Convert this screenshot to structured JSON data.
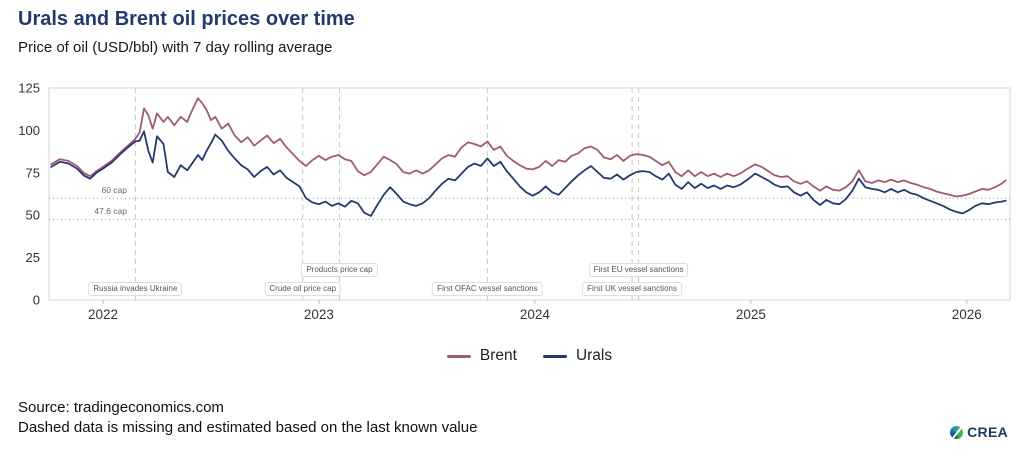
{
  "header": {
    "title": "Urals and Brent oil prices over time",
    "subtitle": "Price of oil (USD/bbl) with 7 day rolling average"
  },
  "footer": {
    "source": "Source: tradingeconomics.com",
    "note": "Dashed data is missing and estimated based on the last known value",
    "logo_text": "CREA"
  },
  "chart_data": {
    "type": "line",
    "title": "Urals and Brent oil prices over time",
    "xlabel": "",
    "ylabel": "Price of oil (USD/bbl) with 7 day rolling average",
    "xlim": [
      2021.75,
      2026.2
    ],
    "ylim": [
      0,
      125
    ],
    "y_ticks": [
      0,
      25,
      50,
      75,
      100,
      125
    ],
    "x_ticks": [
      2022,
      2023,
      2024,
      2025,
      2026
    ],
    "grid": false,
    "legend_position": "bottom-center",
    "colors": {
      "brent": "#a05a78",
      "urals": "#233a6e"
    },
    "x": [
      2021.76,
      2021.8,
      2021.84,
      2021.88,
      2021.91,
      2021.94,
      2021.97,
      2022.0,
      2022.04,
      2022.08,
      2022.12,
      2022.15,
      2022.17,
      2022.19,
      2022.21,
      2022.23,
      2022.25,
      2022.28,
      2022.3,
      2022.33,
      2022.36,
      2022.39,
      2022.41,
      2022.44,
      2022.46,
      2022.48,
      2022.5,
      2022.52,
      2022.55,
      2022.58,
      2022.61,
      2022.64,
      2022.67,
      2022.7,
      2022.73,
      2022.76,
      2022.79,
      2022.82,
      2022.85,
      2022.88,
      2022.91,
      2022.94,
      2022.97,
      2023.0,
      2023.03,
      2023.06,
      2023.09,
      2023.12,
      2023.15,
      2023.18,
      2023.21,
      2023.24,
      2023.27,
      2023.3,
      2023.33,
      2023.36,
      2023.39,
      2023.42,
      2023.45,
      2023.48,
      2023.51,
      2023.54,
      2023.57,
      2023.6,
      2023.63,
      2023.66,
      2023.69,
      2023.72,
      2023.75,
      2023.78,
      2023.81,
      2023.84,
      2023.87,
      2023.9,
      2023.93,
      2023.96,
      2023.99,
      2024.02,
      2024.05,
      2024.08,
      2024.11,
      2024.14,
      2024.17,
      2024.2,
      2024.23,
      2024.26,
      2024.29,
      2024.32,
      2024.35,
      2024.38,
      2024.41,
      2024.44,
      2024.47,
      2024.5,
      2024.53,
      2024.56,
      2024.59,
      2024.62,
      2024.65,
      2024.68,
      2024.71,
      2024.74,
      2024.77,
      2024.8,
      2024.83,
      2024.86,
      2024.89,
      2024.92,
      2024.95,
      2024.98,
      2025.02,
      2025.05,
      2025.08,
      2025.11,
      2025.14,
      2025.17,
      2025.2,
      2025.23,
      2025.26,
      2025.29,
      2025.32,
      2025.35,
      2025.38,
      2025.41,
      2025.44,
      2025.47,
      2025.5,
      2025.53,
      2025.56,
      2025.59,
      2025.62,
      2025.65,
      2025.68,
      2025.71,
      2025.74,
      2025.77,
      2025.8,
      2025.83,
      2025.86,
      2025.89,
      2025.92,
      2025.95,
      2025.98,
      2026.01,
      2026.04,
      2026.07,
      2026.1,
      2026.13,
      2026.16,
      2026.18
    ],
    "series": [
      {
        "name": "Brent",
        "color": "#a05a78",
        "values": [
          80,
          83,
          82,
          79,
          75,
          73,
          76,
          78.5,
          82,
          87,
          91.5,
          95,
          99,
          113,
          109,
          101,
          110,
          105,
          108,
          103,
          108,
          105,
          111,
          119,
          116,
          112,
          106,
          108,
          101,
          104,
          97,
          93,
          96,
          91,
          94,
          97,
          92.5,
          95,
          90,
          86,
          82,
          79,
          82.5,
          85,
          82.5,
          84.5,
          85.5,
          83,
          82,
          76,
          73.5,
          75.5,
          80,
          84.5,
          82.5,
          80,
          75.5,
          74.5,
          76.5,
          74.5,
          76.5,
          80,
          83.5,
          85.5,
          84.5,
          90,
          93,
          92,
          90.5,
          93.5,
          88.5,
          90.5,
          85,
          82,
          79.5,
          77.5,
          77,
          78.5,
          82,
          79,
          82.5,
          81.5,
          85,
          86.5,
          89.5,
          90.5,
          88.5,
          84,
          83,
          85.5,
          82,
          85,
          86,
          85.5,
          84.5,
          82,
          79.5,
          81.5,
          75.5,
          73,
          76.5,
          73,
          75.5,
          73,
          74.5,
          72.5,
          74.5,
          73,
          74.5,
          77,
          80,
          78.5,
          76,
          73.5,
          72.5,
          73,
          70,
          68.5,
          70,
          67,
          64.5,
          67,
          65,
          64.5,
          66.5,
          70,
          76.5,
          70,
          69,
          70.5,
          69.5,
          71,
          69.5,
          70.5,
          69,
          68,
          66.5,
          65.5,
          64,
          63,
          62,
          61,
          61.5,
          62.5,
          64,
          65.5,
          65,
          66.5,
          68.5,
          70.5
        ]
      },
      {
        "name": "Urals",
        "color": "#233a6e",
        "values": [
          78.5,
          81.5,
          80.5,
          77.5,
          73.5,
          71.5,
          75,
          77.5,
          81,
          86,
          90.5,
          93.5,
          94,
          99.5,
          88,
          81,
          96.5,
          92,
          75.5,
          72.5,
          79.5,
          76.5,
          80,
          85.5,
          82.5,
          88,
          92.5,
          97.5,
          94,
          88,
          83.5,
          79.5,
          77,
          72.5,
          76,
          78.5,
          74,
          76.5,
          72,
          69.5,
          67,
          60,
          57.5,
          56.5,
          58,
          55.5,
          57,
          55,
          58.5,
          57,
          51.5,
          49.5,
          56,
          62,
          66.5,
          62.5,
          58,
          56.5,
          55.5,
          57,
          60,
          64.5,
          68.5,
          71.5,
          70.5,
          74.5,
          78.5,
          80.5,
          79,
          83.5,
          79,
          81.5,
          76,
          71.5,
          67,
          63.5,
          61.5,
          63.5,
          67,
          63.5,
          62,
          66,
          70,
          73.5,
          76.5,
          79,
          75.5,
          72,
          71.5,
          74,
          71,
          73.5,
          75.5,
          76,
          75.5,
          73,
          71,
          74.5,
          68,
          65.5,
          69.5,
          66,
          68.5,
          66,
          67.5,
          65.5,
          67.5,
          66.5,
          68,
          70.5,
          74.5,
          72.5,
          70.5,
          68,
          66.5,
          67,
          63.5,
          61.5,
          63.5,
          59,
          56,
          59,
          57,
          56.5,
          59.5,
          64.5,
          71.5,
          66.5,
          65.5,
          65,
          63.5,
          65.5,
          63.5,
          65,
          63,
          62,
          60,
          58.5,
          57,
          55.5,
          53.5,
          52,
          51,
          53,
          55.5,
          57,
          56.5,
          57.5,
          58,
          58.5
        ]
      }
    ],
    "reference_lines": [
      {
        "label": "60 cap",
        "value": 60
      },
      {
        "label": "47.6 cap",
        "value": 47.6
      }
    ],
    "events": [
      {
        "label": "Russia invades Ukraine",
        "year": 2022.15,
        "row": "bottom"
      },
      {
        "label": "Crude oil price cap",
        "year": 2022.925,
        "row": "bottom"
      },
      {
        "label": "Products price cap",
        "year": 2023.095,
        "row": "top"
      },
      {
        "label": "First OFAC vessel sanctions",
        "year": 2023.78,
        "row": "bottom"
      },
      {
        "label": "First UK vessel sanctions",
        "year": 2024.45,
        "row": "bottom"
      },
      {
        "label": "First EU vessel sanctions",
        "year": 2024.48,
        "row": "top"
      }
    ]
  }
}
